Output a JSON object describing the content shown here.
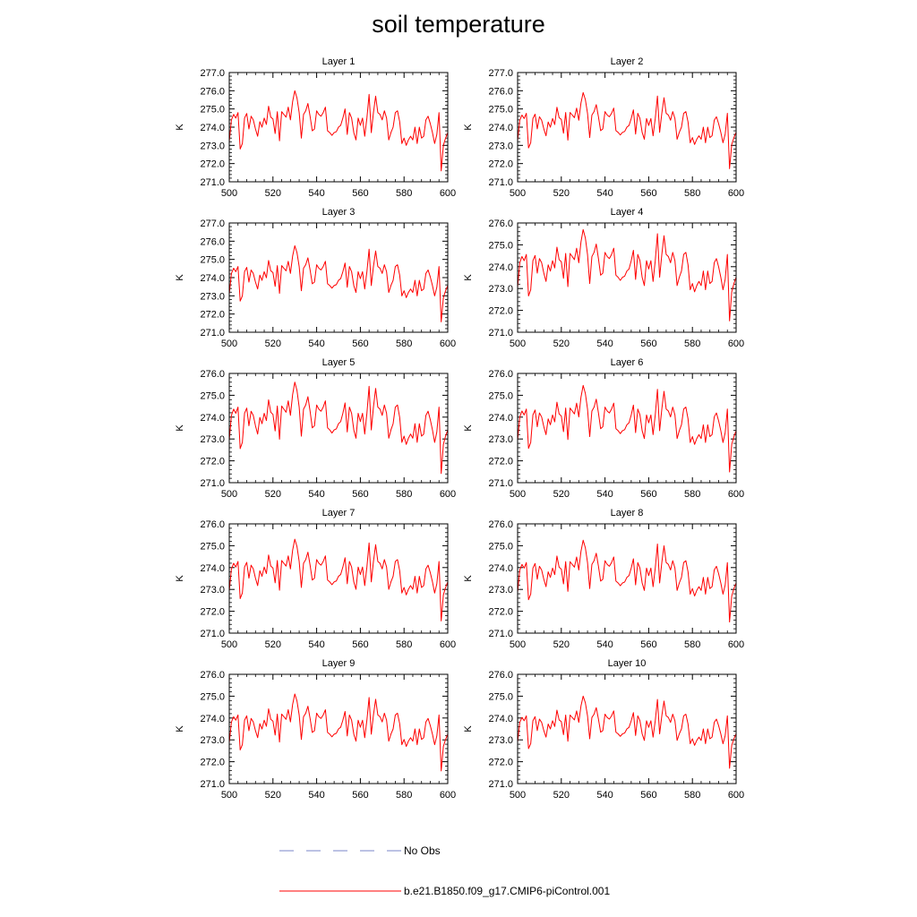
{
  "title": "soil temperature",
  "colors": {
    "model": "#ff0000",
    "obs": "#7a86c8",
    "axis": "#000000"
  },
  "legend": {
    "obs_label": "No Obs",
    "model_label": "b.e21.B1850.f09_g17.CMIP6-piControl.001"
  },
  "chart_data": {
    "type": "line",
    "x": [
      500,
      501,
      502,
      503,
      504,
      505,
      506,
      507,
      508,
      509,
      510,
      511,
      512,
      513,
      514,
      515,
      516,
      517,
      518,
      519,
      520,
      521,
      522,
      523,
      524,
      525,
      526,
      527,
      528,
      529,
      530,
      531,
      532,
      533,
      534,
      535,
      536,
      537,
      538,
      539,
      540,
      541,
      542,
      543,
      544,
      545,
      546,
      547,
      548,
      549,
      550,
      551,
      552,
      553,
      554,
      555,
      556,
      557,
      558,
      559,
      560,
      561,
      562,
      563,
      564,
      565,
      566,
      567,
      568,
      569,
      570,
      571,
      572,
      573,
      574,
      575,
      576,
      577,
      578,
      579,
      580,
      581,
      582,
      583,
      584,
      585,
      586,
      587,
      588,
      589,
      590,
      591,
      592,
      593,
      594,
      595,
      596,
      597,
      598,
      599,
      600
    ],
    "base_anomaly": [
      -0.8,
      0.4,
      0.7,
      0.5,
      0.8,
      -1.2,
      -0.9,
      0.5,
      0.75,
      -0.1,
      0.6,
      0.4,
      -0.1,
      -0.5,
      0.3,
      0.0,
      0.5,
      0.15,
      1.15,
      0.55,
      0.45,
      -0.35,
      0.85,
      -0.75,
      0.85,
      0.7,
      0.55,
      1.1,
      0.4,
      1.4,
      2.0,
      1.6,
      0.8,
      -0.6,
      0.7,
      0.9,
      1.3,
      0.6,
      -0.2,
      -0.1,
      0.9,
      0.7,
      0.6,
      0.8,
      1.1,
      -0.2,
      -0.3,
      -0.45,
      -0.3,
      -0.25,
      0.0,
      0.1,
      0.5,
      1.0,
      -0.4,
      0.8,
      0.5,
      -0.3,
      -0.7,
      0.5,
      0.1,
      0.5,
      -0.5,
      0.5,
      1.8,
      -0.3,
      0.8,
      1.7,
      0.8,
      0.7,
      0.4,
      0.9,
      0.5,
      -0.7,
      -0.3,
      0.0,
      0.8,
      0.9,
      0.3,
      -0.9,
      -0.6,
      -1.0,
      -0.7,
      -0.5,
      -0.7,
      0.0,
      -0.9,
      0.0,
      -0.6,
      -0.5,
      0.4,
      0.6,
      0.2,
      -0.3,
      -0.9,
      -0.4,
      0.8,
      -2.4,
      -1.0,
      -0.6,
      -0.3
    ],
    "x_ticks": [
      500,
      520,
      540,
      560,
      580,
      600
    ],
    "ylabel": "K",
    "series_name": "b.e21.B1850.f09_g17.CMIP6-piControl.001",
    "panels": [
      {
        "title": "Layer 1",
        "mean": 274.0,
        "scale": 1.0,
        "ylim": [
          271,
          277
        ],
        "yticks": [
          "271.0",
          "272.0",
          "273.0",
          "274.0",
          "275.0",
          "276.0",
          "277.0"
        ]
      },
      {
        "title": "Layer 2",
        "mean": 274.0,
        "scale": 0.95,
        "ylim": [
          271,
          277
        ],
        "yticks": [
          "271.0",
          "272.0",
          "273.0",
          "274.0",
          "275.0",
          "276.0",
          "277.0"
        ]
      },
      {
        "title": "Layer 3",
        "mean": 273.85,
        "scale": 0.95,
        "ylim": [
          271,
          277
        ],
        "yticks": [
          "271.0",
          "272.0",
          "273.0",
          "274.0",
          "275.0",
          "276.0",
          "277.0"
        ]
      },
      {
        "title": "Layer 4",
        "mean": 273.8,
        "scale": 0.95,
        "ylim": [
          271,
          276
        ],
        "yticks": [
          "271.0",
          "272.0",
          "273.0",
          "274.0",
          "275.0",
          "276.0"
        ]
      },
      {
        "title": "Layer 5",
        "mean": 273.7,
        "scale": 0.95,
        "ylim": [
          271,
          276
        ],
        "yticks": [
          "271.0",
          "272.0",
          "273.0",
          "274.0",
          "275.0",
          "276.0"
        ]
      },
      {
        "title": "Layer 6",
        "mean": 273.65,
        "scale": 0.9,
        "ylim": [
          271,
          276
        ],
        "yticks": [
          "271.0",
          "272.0",
          "273.0",
          "274.0",
          "275.0",
          "276.0"
        ]
      },
      {
        "title": "Layer 7",
        "mean": 273.6,
        "scale": 0.85,
        "ylim": [
          271,
          276
        ],
        "yticks": [
          "271.0",
          "272.0",
          "273.0",
          "274.0",
          "275.0",
          "276.0"
        ]
      },
      {
        "title": "Layer 8",
        "mean": 273.55,
        "scale": 0.85,
        "ylim": [
          271,
          276
        ],
        "yticks": [
          "271.0",
          "272.0",
          "273.0",
          "274.0",
          "275.0",
          "276.0"
        ]
      },
      {
        "title": "Layer 9",
        "mean": 273.5,
        "scale": 0.8,
        "ylim": [
          271,
          276
        ],
        "yticks": [
          "271.0",
          "272.0",
          "273.0",
          "274.0",
          "275.0",
          "276.0"
        ]
      },
      {
        "title": "Layer 10",
        "mean": 273.5,
        "scale": 0.75,
        "ylim": [
          271,
          276
        ],
        "yticks": [
          "271.0",
          "272.0",
          "273.0",
          "274.0",
          "275.0",
          "276.0"
        ]
      }
    ]
  }
}
